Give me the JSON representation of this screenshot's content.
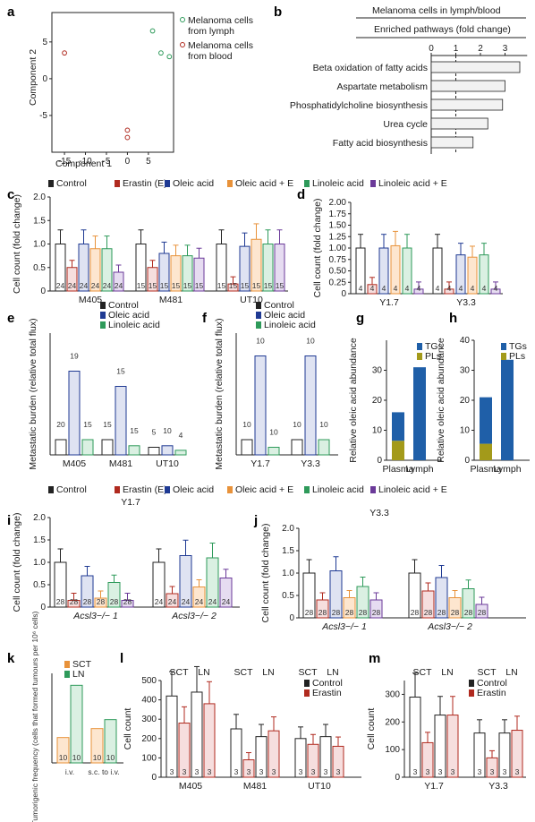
{
  "colors": {
    "control": "#222222",
    "erastin": "#b02a1f",
    "oleic": "#1f3a93",
    "oleic_e": "#e8923a",
    "linoleic": "#2e9a5a",
    "linoleic_e": "#6b3a99",
    "tgs": "#1f5fa8",
    "pls": "#a39a1a",
    "sct": "#e8923a",
    "ln": "#2e9a5a"
  },
  "panel_labels": {
    "a": "a",
    "b": "b",
    "c": "c",
    "d": "d",
    "e": "e",
    "f": "f",
    "g": "g",
    "h": "h",
    "i": "i",
    "j": "j",
    "k": "k",
    "l": "l",
    "m": "m"
  },
  "legend_main": {
    "control": "Control",
    "erastin": "Erastin (E)",
    "oleic": "Oleic acid",
    "oleic_e": "Oleic acid + E",
    "linoleic": "Linoleic acid",
    "linoleic_e": "Linoleic acid + E"
  },
  "chart_data": [
    {
      "id": "a",
      "type": "scatter",
      "xlabel": "Component 1",
      "ylabel": "Component 2",
      "xticks": [
        "-15",
        "-10",
        "-5",
        "0",
        "5"
      ],
      "yticks": [
        "5",
        "0",
        "-5"
      ],
      "legend": [
        "Melanoma cells from lymph",
        "Melanoma cells from blood"
      ],
      "series": [
        {
          "name": "Melanoma cells from lymph",
          "points": [
            [
              6,
              6.5
            ],
            [
              8,
              3.5
            ],
            [
              10,
              3.0
            ]
          ]
        },
        {
          "name": "Melanoma cells from blood",
          "points": [
            [
              -15,
              3.5
            ],
            [
              0,
              -7
            ],
            [
              0,
              -8
            ]
          ]
        }
      ]
    },
    {
      "id": "b",
      "type": "bar",
      "title": "Melanoma cells in lymph/blood",
      "subtitle": "Enriched pathways (fold change)",
      "categories": [
        "Beta oxidation of fatty acids",
        "Aspartate metabolism",
        "Phosphatidylcholine biosynthesis",
        "Urea cycle",
        "Fatty acid biosynthesis"
      ],
      "values": [
        3.6,
        3.0,
        2.9,
        2.3,
        1.7
      ],
      "xticks": [
        "0",
        "1",
        "2",
        "3"
      ]
    },
    {
      "id": "c",
      "type": "bar",
      "ylabel": "Cell count (fold change)",
      "yticks": [
        "0",
        "0.5",
        "1.0",
        "1.5",
        "2.0"
      ],
      "groups": [
        "M405",
        "M481",
        "UT10"
      ],
      "values": [
        [
          1.0,
          0.5,
          1.0,
          0.9,
          0.9,
          0.4
        ],
        [
          1.0,
          0.5,
          0.8,
          0.75,
          0.75,
          0.7
        ],
        [
          1.0,
          0.15,
          0.95,
          1.1,
          1.0,
          1.0
        ]
      ],
      "n": [
        [
          "24",
          "24",
          "24",
          "24",
          "24",
          "24"
        ],
        [
          "15",
          "15",
          "15",
          "15",
          "15",
          "15"
        ],
        [
          "15",
          "15",
          "15",
          "15",
          "15",
          "15"
        ]
      ]
    },
    {
      "id": "d",
      "type": "bar",
      "ylabel": "Cell count (fold change)",
      "yticks": [
        "0",
        "0.25",
        "0.50",
        "0.75",
        "1.00",
        "1.25",
        "1.50",
        "1.75",
        "2.00"
      ],
      "groups": [
        "Y1.7",
        "Y3.3"
      ],
      "values": [
        [
          1.0,
          0.2,
          1.0,
          1.05,
          1.0,
          0.1
        ],
        [
          1.0,
          0.1,
          0.85,
          0.8,
          0.85,
          0.1
        ]
      ],
      "n": [
        [
          "4",
          "4",
          "4",
          "4",
          "4",
          "4"
        ],
        [
          "4",
          "4",
          "4",
          "4",
          "4",
          "4"
        ]
      ]
    },
    {
      "id": "e",
      "type": "bar",
      "ylabel": "Metastatic burden (relative total flux)",
      "legend": [
        "Control",
        "Oleic acid",
        "Linoleic acid"
      ],
      "groups": [
        "M405",
        "M481",
        "UT10"
      ],
      "values": [
        [
          1.0,
          5.5,
          1.0
        ],
        [
          1.0,
          4.5,
          0.6
        ],
        [
          0.5,
          0.6,
          0.3
        ]
      ],
      "n": [
        [
          "20",
          "19",
          "15"
        ],
        [
          "15",
          "15",
          "15"
        ],
        [
          "5",
          "10",
          "4"
        ]
      ]
    },
    {
      "id": "f",
      "type": "bar",
      "ylabel": "Metastatic burden (relative total flux)",
      "legend": [
        "Control",
        "Oleic acid",
        "Linoleic acid"
      ],
      "groups": [
        "Y1.7",
        "Y3.3"
      ],
      "values": [
        [
          1.0,
          6.5,
          0.5
        ],
        [
          1.0,
          6.5,
          1.0
        ]
      ],
      "n": [
        [
          "10",
          "10",
          "10"
        ],
        [
          "10",
          "10",
          "10"
        ]
      ]
    },
    {
      "id": "g",
      "type": "bar",
      "ylabel": "Relative oleic acid abundance",
      "yticks": [
        "0",
        "10",
        "20",
        "30"
      ],
      "categories": [
        "Plasma",
        "Lymph"
      ],
      "legend": [
        "TGs",
        "PLs"
      ],
      "series": [
        {
          "name": "PLs",
          "values": [
            6.5,
            0
          ]
        },
        {
          "name": "TGs",
          "values": [
            9.5,
            31
          ]
        }
      ]
    },
    {
      "id": "h",
      "type": "bar",
      "ylabel": "Relative oleic acid abundance",
      "yticks": [
        "0",
        "10",
        "20",
        "30",
        "40"
      ],
      "categories": [
        "Plasma",
        "Lymph"
      ],
      "legend": [
        "TGs",
        "PLs"
      ],
      "series": [
        {
          "name": "PLs",
          "values": [
            5.5,
            0
          ]
        },
        {
          "name": "TGs",
          "values": [
            15.5,
            33.5
          ]
        }
      ]
    },
    {
      "id": "i",
      "type": "bar",
      "title": "Y1.7",
      "ylabel": "Cell count (fold change)",
      "yticks": [
        "0",
        "0.5",
        "1.0",
        "1.5",
        "2.0"
      ],
      "groups": [
        "Acsl3−/− 1",
        "Acsl3−/− 2"
      ],
      "values": [
        [
          1.0,
          0.15,
          0.7,
          0.2,
          0.55,
          0.15
        ],
        [
          1.0,
          0.3,
          1.15,
          0.45,
          1.1,
          0.65
        ]
      ],
      "n": [
        [
          "28",
          "28",
          "28",
          "28",
          "28",
          "28"
        ],
        [
          "24",
          "24",
          "24",
          "24",
          "24",
          "24"
        ]
      ]
    },
    {
      "id": "j",
      "type": "bar",
      "title": "Y3.3",
      "ylabel": "Cell count (fold change)",
      "yticks": [
        "0",
        "0.5",
        "1.0",
        "1.5",
        "2.0"
      ],
      "groups": [
        "Acsl3−/− 1",
        "Acsl3−/− 2"
      ],
      "values": [
        [
          1.0,
          0.4,
          1.05,
          0.45,
          0.7,
          0.4
        ],
        [
          1.0,
          0.6,
          0.9,
          0.45,
          0.65,
          0.3
        ]
      ],
      "n": [
        [
          "28",
          "28",
          "28",
          "28",
          "28",
          "28"
        ],
        [
          "28",
          "28",
          "28",
          "28",
          "28",
          "28"
        ]
      ]
    },
    {
      "id": "k",
      "type": "bar",
      "ylabel": "Tumorigenic frequency (cells that formed tumours per 10⁶ cells)",
      "legend": [
        "SCT",
        "LN"
      ],
      "categories": [
        "i.v.",
        "s.c. to i.v."
      ],
      "series": [
        {
          "name": "SCT",
          "values": [
            1.7,
            2.3
          ]
        },
        {
          "name": "LN",
          "values": [
            5.2,
            2.9
          ]
        }
      ],
      "n": [
        [
          "10",
          "10"
        ],
        [
          "10",
          "10"
        ]
      ]
    },
    {
      "id": "l",
      "type": "bar",
      "ylabel": "Cell count",
      "yticks": [
        "0",
        "100",
        "200",
        "300",
        "400",
        "500"
      ],
      "legend": [
        "Control",
        "Erastin"
      ],
      "groups": [
        "M405",
        "M481",
        "UT10"
      ],
      "values": [
        [
          420,
          280,
          440,
          380
        ],
        [
          250,
          90,
          210,
          240
        ],
        [
          200,
          170,
          210,
          160
        ]
      ],
      "n": [
        [
          "3",
          "3",
          "3",
          "3"
        ],
        [
          "3",
          "3",
          "3",
          "3"
        ],
        [
          "3",
          "3",
          "3",
          "3"
        ]
      ]
    },
    {
      "id": "m",
      "type": "bar",
      "ylabel": "Cell count",
      "yticks": [
        "0",
        "100",
        "200",
        "300"
      ],
      "legend": [
        "Control",
        "Erastin"
      ],
      "groups": [
        "Y1.7",
        "Y3.3"
      ],
      "values": [
        [
          290,
          125,
          225,
          225
        ],
        [
          160,
          70,
          160,
          170
        ]
      ],
      "n": [
        [
          "3",
          "3",
          "3",
          "3"
        ],
        [
          "3",
          "3",
          "3",
          "3"
        ]
      ]
    }
  ],
  "text": {
    "sct": "SCT",
    "ln": "LN",
    "iv": "i.v.",
    "sctoiv": "s.c. to i.v.",
    "plasma": "Plasma",
    "lymph": "Lymph",
    "tgs": "TGs",
    "pls": "PLs"
  }
}
